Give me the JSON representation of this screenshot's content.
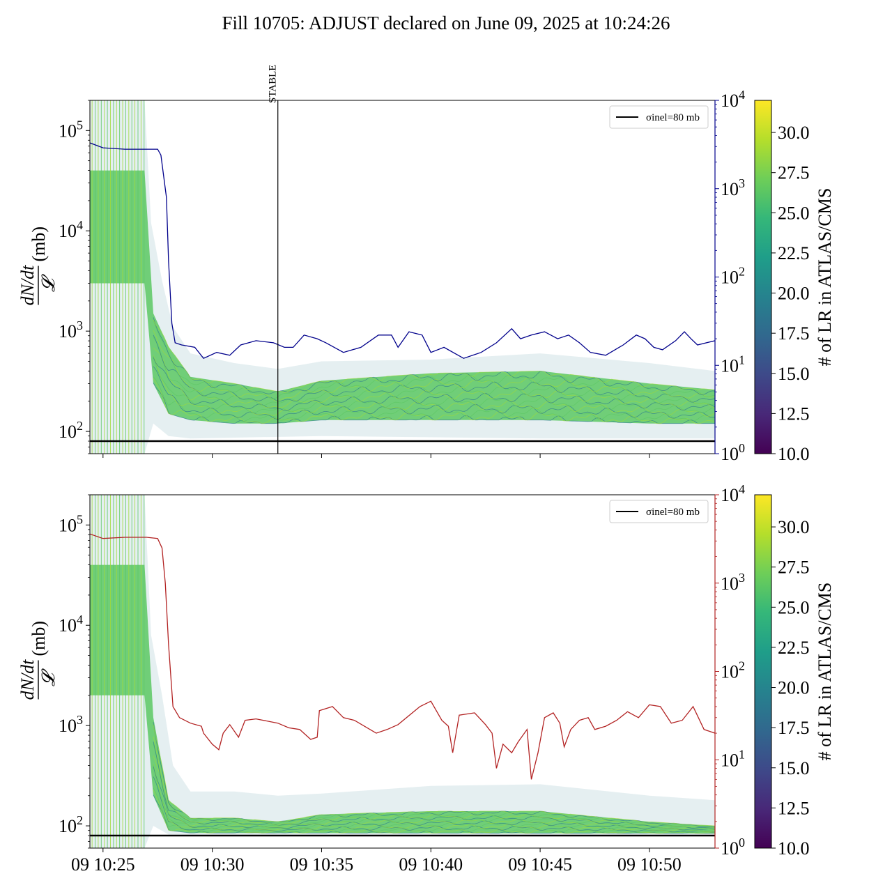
{
  "title": "Fill 10705: ADJUST declared on June 09, 2025 at 10:24:26",
  "colors": {
    "left_line": "#000000",
    "top_right_axis": "#00008b",
    "bottom_right_axis": "#b22222",
    "bundle_main": "#5cc863",
    "bundle_dark": "#2a788e",
    "bundle_light": "#a0da39"
  },
  "chart_data": [
    {
      "type": "line",
      "panel": "top",
      "ylabel": "dN/dt / 𝓛 (mb)",
      "yscale": "log",
      "ylim": [
        60,
        200000
      ],
      "y_ticks": [
        "10²",
        "10³",
        "10⁴",
        "10⁵"
      ],
      "y2_scale": "log",
      "y2_lim": [
        1,
        10000
      ],
      "y2_ticks": [
        "10⁰",
        "10¹",
        "10²",
        "10³",
        "10⁴"
      ],
      "y2_color": "#00008b",
      "x_ticks": [
        "09 10:25",
        "09 10:30",
        "09 10:35",
        "09 10:40",
        "09 10:45",
        "09 10:50"
      ],
      "xlim_minutes": [
        -0.6,
        28.0
      ],
      "stable_label": "STABLE",
      "stable_time_minutes": 8.0,
      "legend": {
        "label": "σinel=80 mb",
        "position": "upper right"
      },
      "reference_line_mb": 80,
      "right_series": {
        "color": "#00008b",
        "points": [
          [
            -0.6,
            3300
          ],
          [
            0,
            2900
          ],
          [
            1,
            2800
          ],
          [
            2,
            2800
          ],
          [
            2.5,
            2800
          ],
          [
            2.65,
            2400
          ],
          [
            2.9,
            800
          ],
          [
            3.0,
            150
          ],
          [
            3.15,
            30
          ],
          [
            3.3,
            18
          ],
          [
            3.6,
            17
          ],
          [
            4.2,
            16
          ],
          [
            4.6,
            12
          ],
          [
            5.2,
            14
          ],
          [
            5.8,
            13
          ],
          [
            6.3,
            17
          ],
          [
            7.0,
            19
          ],
          [
            7.8,
            18
          ],
          [
            8.3,
            16
          ],
          [
            8.7,
            16
          ],
          [
            9.2,
            22
          ],
          [
            9.8,
            20
          ],
          [
            10.2,
            18
          ],
          [
            11.0,
            14
          ],
          [
            11.8,
            16
          ],
          [
            12.6,
            22
          ],
          [
            13.2,
            22
          ],
          [
            13.5,
            16
          ],
          [
            14.0,
            24
          ],
          [
            14.6,
            22
          ],
          [
            15.0,
            14
          ],
          [
            15.6,
            16
          ],
          [
            16.5,
            12
          ],
          [
            17.3,
            14
          ],
          [
            18.0,
            18
          ],
          [
            18.7,
            26
          ],
          [
            19.1,
            20
          ],
          [
            19.6,
            22
          ],
          [
            20.2,
            24
          ],
          [
            20.8,
            20
          ],
          [
            21.3,
            22
          ],
          [
            21.8,
            18
          ],
          [
            22.3,
            14
          ],
          [
            23.0,
            13
          ],
          [
            23.8,
            17
          ],
          [
            24.4,
            22
          ],
          [
            24.8,
            20
          ],
          [
            25.2,
            16
          ],
          [
            25.6,
            15
          ],
          [
            26.2,
            19
          ],
          [
            26.6,
            24
          ],
          [
            26.9,
            20
          ],
          [
            27.2,
            17
          ],
          [
            28.0,
            19
          ]
        ]
      },
      "bundle_envelope": {
        "description": "color-coded per-bunch ratio curves; colour = # of LR in ATLAS/CMS",
        "upper": [
          [
            -0.6,
            200000
          ],
          [
            1.9,
            200000
          ],
          [
            2.2,
            12000
          ],
          [
            2.7,
            3200
          ],
          [
            3.2,
            1100
          ],
          [
            4.0,
            600
          ],
          [
            6.0,
            480
          ],
          [
            8.0,
            420
          ],
          [
            10.0,
            500
          ],
          [
            15.0,
            520
          ],
          [
            20.0,
            600
          ],
          [
            25.0,
            480
          ],
          [
            28.0,
            400
          ]
        ],
        "core_upper": [
          [
            -0.6,
            40000
          ],
          [
            1.9,
            40000
          ],
          [
            2.3,
            1500
          ],
          [
            3.0,
            700
          ],
          [
            4.0,
            350
          ],
          [
            6.0,
            300
          ],
          [
            8.0,
            250
          ],
          [
            10.0,
            320
          ],
          [
            15.0,
            380
          ],
          [
            20.0,
            400
          ],
          [
            25.0,
            300
          ],
          [
            28.0,
            260
          ]
        ],
        "core_lower": [
          [
            -0.6,
            3000
          ],
          [
            1.9,
            3000
          ],
          [
            2.3,
            300
          ],
          [
            3.0,
            150
          ],
          [
            4.0,
            130
          ],
          [
            6.0,
            120
          ],
          [
            8.0,
            120
          ],
          [
            10.0,
            130
          ],
          [
            15.0,
            130
          ],
          [
            20.0,
            130
          ],
          [
            25.0,
            120
          ],
          [
            28.0,
            120
          ]
        ],
        "lower": [
          [
            -0.6,
            60
          ],
          [
            1.9,
            60
          ],
          [
            2.3,
            120
          ],
          [
            3.0,
            90
          ],
          [
            4.0,
            85
          ],
          [
            10.0,
            90
          ],
          [
            20.0,
            85
          ],
          [
            28.0,
            85
          ]
        ]
      }
    },
    {
      "type": "line",
      "panel": "bottom",
      "ylabel": "dN/dt / 𝓛 (mb)",
      "yscale": "log",
      "ylim": [
        60,
        200000
      ],
      "y_ticks": [
        "10²",
        "10³",
        "10⁴",
        "10⁵"
      ],
      "y2_scale": "log",
      "y2_lim": [
        1,
        10000
      ],
      "y2_ticks": [
        "10⁰",
        "10¹",
        "10²",
        "10³",
        "10⁴"
      ],
      "y2_color": "#b22222",
      "x_ticks": [
        "09 10:25",
        "09 10:30",
        "09 10:35",
        "09 10:40",
        "09 10:45",
        "09 10:50"
      ],
      "xlim_minutes": [
        -0.6,
        28.0
      ],
      "legend": {
        "label": "σinel=80 mb",
        "position": "upper right"
      },
      "reference_line_mb": 80,
      "right_series": {
        "color": "#b22222",
        "points": [
          [
            -0.6,
            3600
          ],
          [
            0,
            3200
          ],
          [
            1,
            3300
          ],
          [
            2,
            3300
          ],
          [
            2.5,
            3200
          ],
          [
            2.7,
            2500
          ],
          [
            2.85,
            1000
          ],
          [
            3.0,
            200
          ],
          [
            3.2,
            40
          ],
          [
            3.5,
            30
          ],
          [
            4.0,
            26
          ],
          [
            4.5,
            24
          ],
          [
            4.6,
            20
          ],
          [
            5.0,
            15
          ],
          [
            5.3,
            13
          ],
          [
            5.5,
            20
          ],
          [
            5.8,
            25
          ],
          [
            6.2,
            18
          ],
          [
            6.5,
            28
          ],
          [
            7.0,
            29
          ],
          [
            8.0,
            26
          ],
          [
            8.5,
            23
          ],
          [
            9.0,
            22
          ],
          [
            9.5,
            17
          ],
          [
            9.8,
            18
          ],
          [
            9.9,
            36
          ],
          [
            10.5,
            40
          ],
          [
            11.0,
            30
          ],
          [
            11.5,
            28
          ],
          [
            12.5,
            20
          ],
          [
            13.0,
            22
          ],
          [
            13.5,
            25
          ],
          [
            14.5,
            40
          ],
          [
            15.0,
            46
          ],
          [
            15.5,
            28
          ],
          [
            15.8,
            24
          ],
          [
            16.0,
            12
          ],
          [
            16.3,
            32
          ],
          [
            17.0,
            34
          ],
          [
            17.5,
            25
          ],
          [
            17.8,
            20
          ],
          [
            18.0,
            8
          ],
          [
            18.3,
            15
          ],
          [
            18.7,
            12
          ],
          [
            19.0,
            16
          ],
          [
            19.4,
            22
          ],
          [
            19.6,
            6
          ],
          [
            19.9,
            12
          ],
          [
            20.2,
            30
          ],
          [
            20.6,
            34
          ],
          [
            20.9,
            26
          ],
          [
            21.1,
            14
          ],
          [
            21.4,
            22
          ],
          [
            21.8,
            28
          ],
          [
            22.2,
            30
          ],
          [
            22.5,
            22
          ],
          [
            23.0,
            24
          ],
          [
            23.5,
            28
          ],
          [
            24.0,
            35
          ],
          [
            24.5,
            30
          ],
          [
            25.0,
            42
          ],
          [
            25.5,
            40
          ],
          [
            26.0,
            26
          ],
          [
            26.5,
            28
          ],
          [
            27.0,
            40
          ],
          [
            27.5,
            22
          ],
          [
            28.0,
            20
          ]
        ]
      },
      "bundle_envelope": {
        "description": "color-coded per-bunch ratio curves; colour = # of LR in ATLAS/CMS",
        "upper": [
          [
            -0.6,
            200000
          ],
          [
            1.9,
            200000
          ],
          [
            2.2,
            8000
          ],
          [
            2.7,
            2000
          ],
          [
            3.2,
            400
          ],
          [
            4.0,
            220
          ],
          [
            6.0,
            220
          ],
          [
            8.0,
            200
          ],
          [
            10.0,
            210
          ],
          [
            15.0,
            250
          ],
          [
            20.0,
            260
          ],
          [
            25.0,
            200
          ],
          [
            28.0,
            180
          ]
        ],
        "core_upper": [
          [
            -0.6,
            40000
          ],
          [
            1.9,
            40000
          ],
          [
            2.3,
            1200
          ],
          [
            3.0,
            180
          ],
          [
            4.0,
            120
          ],
          [
            6.0,
            120
          ],
          [
            8.0,
            110
          ],
          [
            10.0,
            130
          ],
          [
            15.0,
            140
          ],
          [
            20.0,
            140
          ],
          [
            25.0,
            110
          ],
          [
            28.0,
            100
          ]
        ],
        "core_lower": [
          [
            -0.6,
            2000
          ],
          [
            1.9,
            2000
          ],
          [
            2.3,
            200
          ],
          [
            3.0,
            90
          ],
          [
            4.0,
            85
          ],
          [
            28.0,
            84
          ]
        ],
        "lower": [
          [
            -0.6,
            60
          ],
          [
            1.9,
            60
          ],
          [
            2.3,
            100
          ],
          [
            3.0,
            82
          ],
          [
            28.0,
            82
          ]
        ]
      }
    }
  ],
  "colorbar": {
    "label": "# of LR in ATLAS/CMS",
    "colormap": "viridis",
    "range": [
      10.0,
      32.0
    ],
    "ticks": [
      "10.0",
      "12.5",
      "15.0",
      "17.5",
      "20.0",
      "22.5",
      "25.0",
      "27.5",
      "30.0"
    ]
  }
}
